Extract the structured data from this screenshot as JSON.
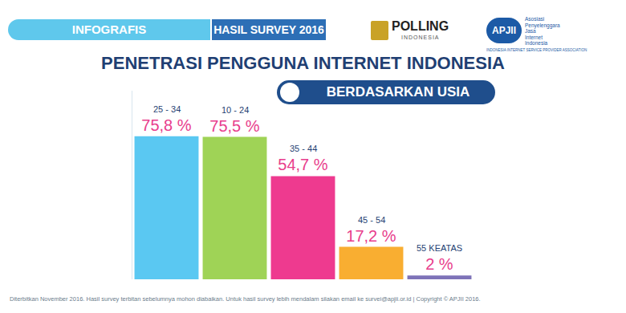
{
  "chart_data": {
    "type": "bar",
    "header": {
      "banner": "INFOGRAFIS",
      "survey": "HASIL SURVEY 2016",
      "logo_polling": {
        "name": "POLLING",
        "sub": "INDONESIA"
      },
      "logo_apjii": {
        "name": "APJII",
        "lines": [
          "Asosiasi",
          "Penyelenggara",
          "Jasa",
          "Internet",
          "Indonesia"
        ],
        "tagline": "INDONESIA INTERNET SERVICE PROVIDER ASSOCIATION"
      }
    },
    "title": "PENETRASI PENGGUNA INTERNET INDONESIA",
    "subtitle": "BERDASARKAN USIA",
    "categories": [
      "25 - 34",
      "10 - 24",
      "35 - 44",
      "45 - 54",
      "55 KEATAS"
    ],
    "values": [
      75.8,
      75.5,
      54.7,
      17.2,
      2
    ],
    "value_labels": [
      "75,8 %",
      "75,5 %",
      "54,7 %",
      "17,2 %",
      "2 %"
    ],
    "colors": [
      "#5ac8f2",
      "#9fd356",
      "#ee3a8f",
      "#f9ae31",
      "#7e73b8"
    ],
    "ylim": [
      0,
      100
    ],
    "yticks": [],
    "grid": false,
    "data_labels": true,
    "tick_labels": false,
    "footer": "Diterbitkan November 2016. Hasil survey terbitan sebelumnya mohon diabaikan. Untuk hasil survey lebih mendalam silakan email ke survei@apjii.or.id | Copyright © APJII 2016."
  }
}
